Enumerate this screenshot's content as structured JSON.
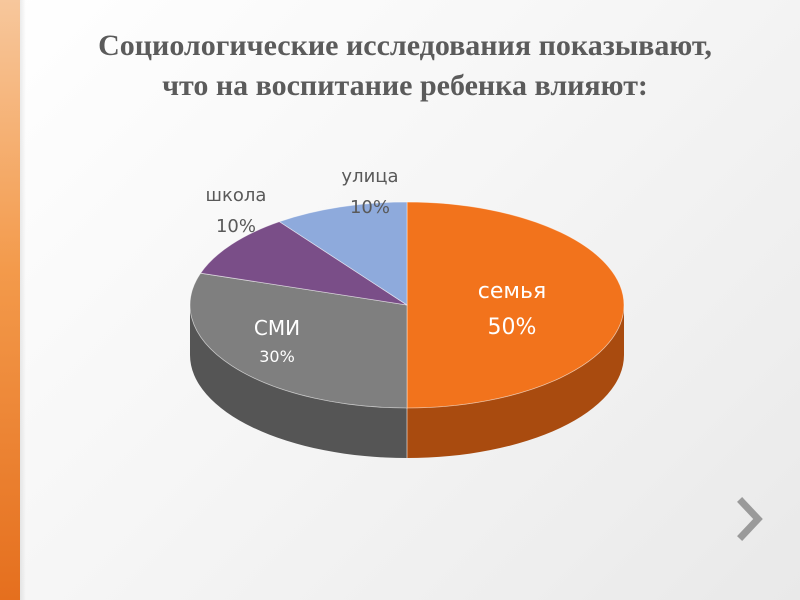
{
  "title": {
    "line1": "Социологические исследования показывают,",
    "line2": "что на воспитание ребенка влияют:"
  },
  "chart_data": {
    "type": "pie",
    "slices": [
      {
        "label": "семья",
        "value": 50,
        "value_label": "50%",
        "color": "#f2731c",
        "side_color": "#a94b0f"
      },
      {
        "label": "СМИ",
        "value": 30,
        "value_label": "30%",
        "color": "#7f7f7f",
        "side_color": "#555555"
      },
      {
        "label": "школа",
        "value": 10,
        "value_label": "10%",
        "color": "#7a4e88",
        "side_color": "#4f3059"
      },
      {
        "label": "улица",
        "value": 10,
        "value_label": "10%",
        "color": "#8eaadc",
        "side_color": "#5d78a6"
      }
    ]
  },
  "nav": {
    "next_icon": "chevron-right-icon",
    "next_color": "#9a9a9a"
  }
}
